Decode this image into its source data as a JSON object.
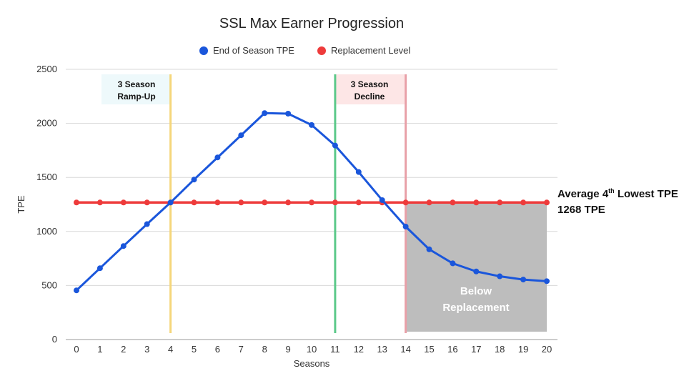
{
  "chart_data": {
    "type": "line",
    "title": "SSL Max Earner Progression",
    "xlabel": "Seasons",
    "ylabel": "TPE",
    "x": [
      0,
      1,
      2,
      3,
      4,
      5,
      6,
      7,
      8,
      9,
      10,
      11,
      12,
      13,
      14,
      15,
      16,
      17,
      18,
      19,
      20
    ],
    "ylim": [
      0,
      2500
    ],
    "yticks": [
      0,
      500,
      1000,
      1500,
      2000,
      2500
    ],
    "grid": true,
    "legend_position": "top-center",
    "series": [
      {
        "name": "End of Season TPE",
        "color": "#1a56db",
        "values": [
          455,
          660,
          865,
          1068,
          1268,
          1480,
          1685,
          1890,
          2095,
          2090,
          1985,
          1795,
          1550,
          1290,
          1045,
          835,
          705,
          630,
          585,
          555,
          540
        ]
      },
      {
        "name": "Replacement Level",
        "color": "#ee3b3b",
        "values": [
          1268,
          1268,
          1268,
          1268,
          1268,
          1268,
          1268,
          1268,
          1268,
          1268,
          1268,
          1268,
          1268,
          1268,
          1268,
          1268,
          1268,
          1268,
          1268,
          1268,
          1268
        ]
      }
    ],
    "annotations": {
      "rampup": {
        "line1": "3 Season",
        "line2": "Ramp-Up",
        "x": 4,
        "color": "#f5d67a",
        "fill": "#eef9fb"
      },
      "decline": {
        "line1": "3 Season",
        "line2": "Decline",
        "x": 11,
        "color": "#5cc98a",
        "fill": "#fde6e6"
      },
      "replacement_start": {
        "x": 14,
        "color": "#e8a0a8"
      },
      "below": {
        "line1": "Below",
        "line2": "Replacement",
        "x_from": 14,
        "x_to": 20,
        "color": "#bdbdbd"
      },
      "side_note": {
        "line1_a": "Average 4",
        "line1_sup": "th",
        "line1_b": " Lowest TPE",
        "line2": "1268 TPE"
      }
    }
  }
}
